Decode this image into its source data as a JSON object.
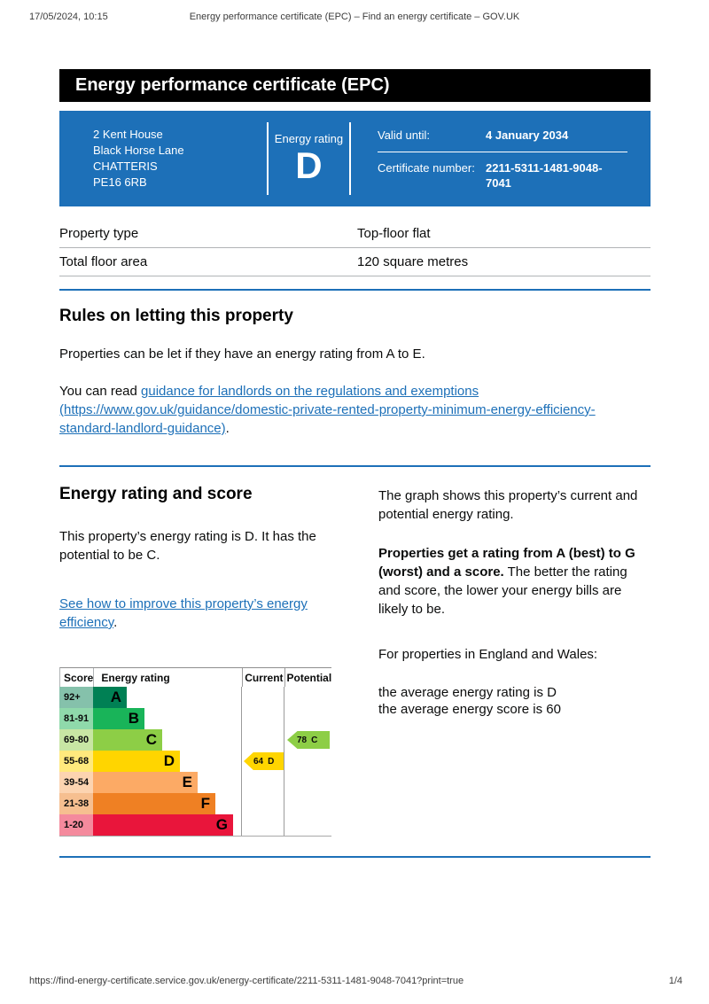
{
  "browser": {
    "datetime": "17/05/2024, 10:15",
    "page_title": "Energy performance certificate (EPC) – Find an energy certificate – GOV.UK",
    "url": "https://find-energy-certificate.service.gov.uk/energy-certificate/2211-5311-1481-9048-7041?print=true",
    "page_number": "1/4"
  },
  "colors": {
    "govuk_blue": "#1d70b8",
    "title_bar_black": "#000000",
    "rule_gray": "#b1b4b6"
  },
  "certificate": {
    "title": "Energy performance certificate (EPC)",
    "address_lines": [
      "2 Kent House",
      "Black Horse Lane",
      "CHATTERIS",
      "PE16 6RB"
    ],
    "energy_rating_label": "Energy rating",
    "energy_rating": "D",
    "valid_until_label": "Valid until:",
    "valid_until": "4 January 2034",
    "certificate_number_label": "Certificate number:",
    "certificate_number": "2211-5311-1481-9048-7041"
  },
  "summary_table": {
    "rows": [
      {
        "label": "Property type",
        "value": "Top-floor flat"
      },
      {
        "label": "Total floor area",
        "value": "120 square metres"
      }
    ]
  },
  "rules_section": {
    "heading": "Rules on letting this property",
    "para1": "Properties can be let if they have an energy rating from A to E.",
    "para2_prefix": "You can read ",
    "para2_link": "guidance for landlords on the regulations and exemptions (https://www.gov.uk/guidance/domestic-private-rented-property-minimum-energy-efficiency-standard-landlord-guidance)",
    "para2_suffix": "."
  },
  "rating_section": {
    "heading": "Energy rating and score",
    "para1": "This property’s energy rating is D. It has the potential to be C.",
    "link": "See how to improve this property’s energy efficiency",
    "link_suffix": ".",
    "right_para1": "The graph shows this property’s current and potential energy rating.",
    "right_para2_bold": "Properties get a rating from A (best) to G (worst) and a score.",
    "right_para2_rest": " The better the rating and score, the lower your energy bills are likely to be.",
    "right_para3": "For properties in England and Wales:",
    "avg_rating_line": "the average energy rating is D",
    "avg_score_line": "the average energy score is 60"
  },
  "chart_data": {
    "type": "bar",
    "title": "EPC energy rating and score graph",
    "columns": [
      "Score",
      "Energy rating",
      "Current",
      "Potential"
    ],
    "bands": [
      {
        "score_range": "92+",
        "letter": "A",
        "color": "#008054",
        "tint": "#85c1ab"
      },
      {
        "score_range": "81-91",
        "letter": "B",
        "color": "#19b459",
        "tint": "#8fd9ab"
      },
      {
        "score_range": "69-80",
        "letter": "C",
        "color": "#8dce46",
        "tint": "#c8e6a4"
      },
      {
        "score_range": "55-68",
        "letter": "D",
        "color": "#ffd500",
        "tint": "#ffe97d"
      },
      {
        "score_range": "39-54",
        "letter": "E",
        "color": "#fcaa65",
        "tint": "#fcd4b1"
      },
      {
        "score_range": "21-38",
        "letter": "F",
        "color": "#ef8023",
        "tint": "#f6bf90"
      },
      {
        "score_range": "1-20",
        "letter": "G",
        "color": "#e9153b",
        "tint": "#f48a9d"
      }
    ],
    "current": {
      "score": 64,
      "letter": "D",
      "band_index": 3,
      "color": "#ffd500"
    },
    "potential": {
      "score": 78,
      "letter": "C",
      "band_index": 2,
      "color": "#8dce46"
    }
  }
}
